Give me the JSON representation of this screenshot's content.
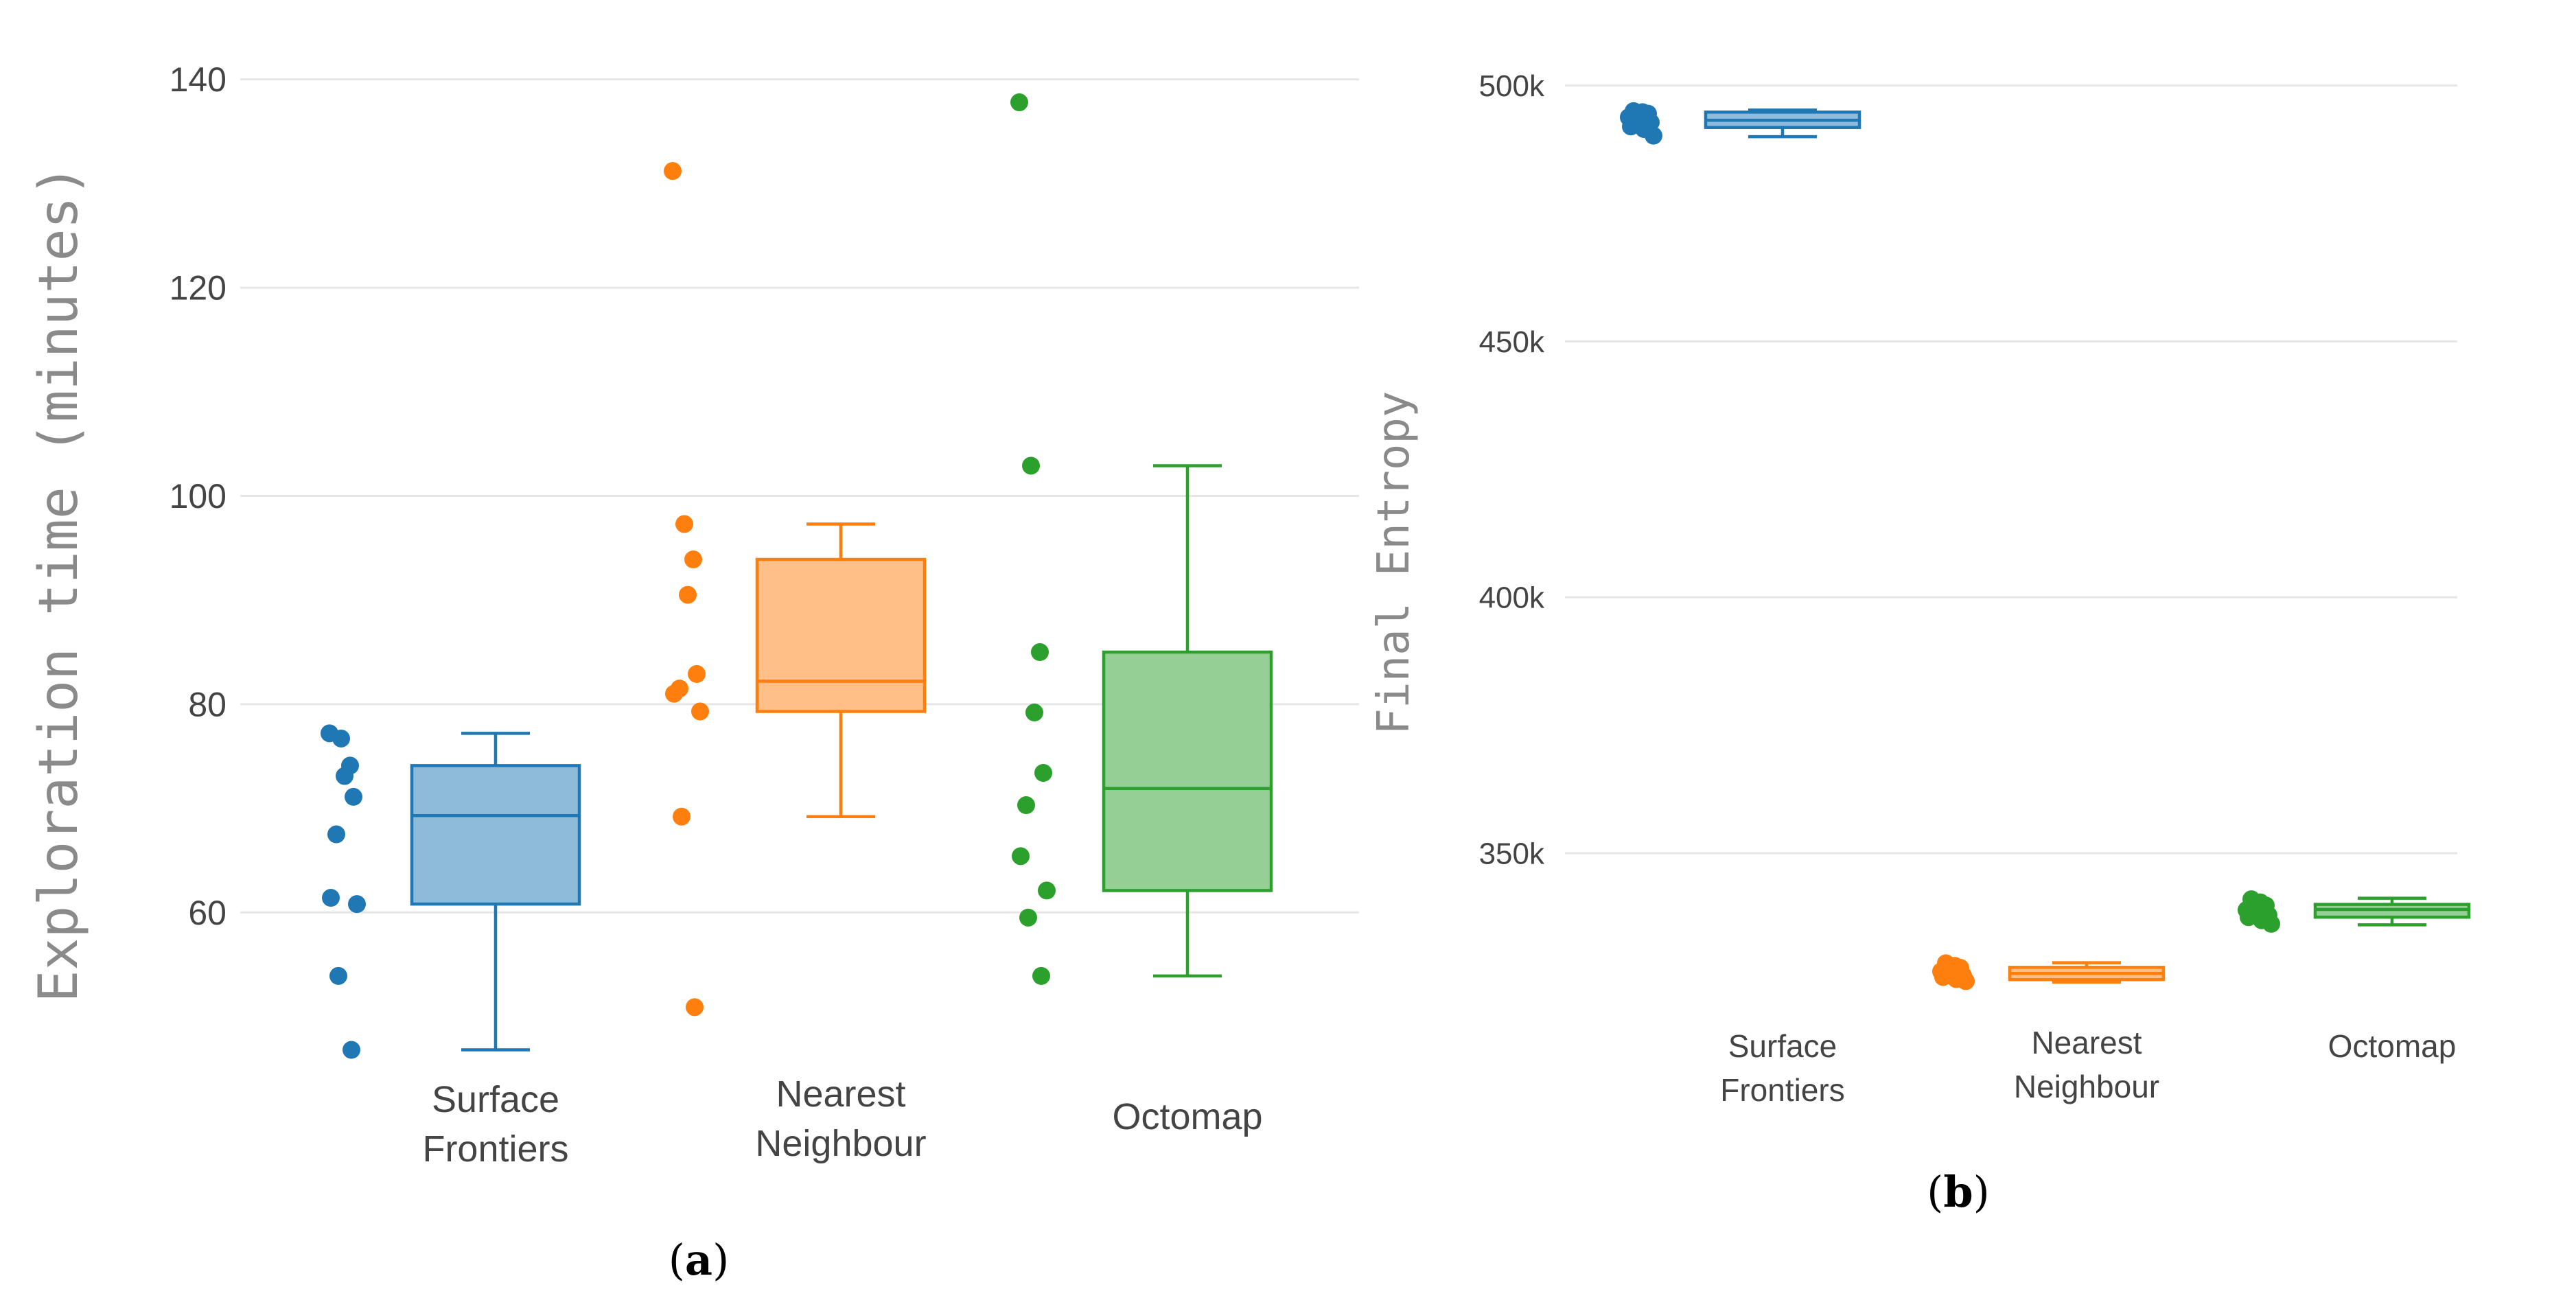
{
  "chart_data": [
    {
      "panel_label": "(a)",
      "type": "box",
      "ylabel": "Exploration time (minutes)",
      "ylim": [
        44,
        144
      ],
      "yticks": [
        60,
        80,
        100,
        120,
        140
      ],
      "ytick_labels": [
        "60",
        "80",
        "100",
        "120",
        "140"
      ],
      "grid": true,
      "series": [
        {
          "name": "Surface Frontiers",
          "label_lines": [
            "Surface",
            "Frontiers"
          ],
          "color": "#1f77b4",
          "fill": "#8fbbdb",
          "points": [
            77.2,
            76.7,
            74.1,
            73.1,
            71.1,
            67.5,
            61.4,
            60.8,
            53.9,
            46.8
          ],
          "q1": 60.8,
          "median": 69.3,
          "q3": 74.1,
          "whisker_low": 46.8,
          "whisker_high": 77.2
        },
        {
          "name": "Nearest Neighbour",
          "label_lines": [
            "Nearest",
            "Neighbour"
          ],
          "color": "#ff7f0e",
          "fill": "#ffbf86",
          "points": [
            131.2,
            97.3,
            93.9,
            90.5,
            82.9,
            81.5,
            81.0,
            79.3,
            69.2,
            50.9
          ],
          "q1": 79.3,
          "median": 82.2,
          "q3": 93.9,
          "whisker_low": 69.2,
          "whisker_high": 97.3
        },
        {
          "name": "Octomap",
          "label_lines": [
            "Octomap"
          ],
          "color": "#2ca02c",
          "fill": "#95cf95",
          "points": [
            137.8,
            102.9,
            85.0,
            79.2,
            73.4,
            70.3,
            65.4,
            62.1,
            59.5,
            53.9
          ],
          "q1": 62.1,
          "median": 71.9,
          "q3": 85.0,
          "whisker_low": 53.9,
          "whisker_high": 102.9
        }
      ]
    },
    {
      "panel_label": "(b)",
      "type": "box",
      "ylabel": "Final Entropy",
      "ylim": [
        315000,
        510000
      ],
      "yticks": [
        350000,
        400000,
        450000,
        500000
      ],
      "ytick_labels": [
        "350k",
        "400k",
        "450k",
        "500k"
      ],
      "grid": true,
      "series": [
        {
          "name": "Surface Frontiers",
          "label_lines": [
            "Surface",
            "Frontiers"
          ],
          "color": "#1f77b4",
          "fill": "#8fbbdb",
          "points": [
            495000,
            494800,
            494500,
            494200,
            493800,
            493200,
            492800,
            492000,
            491500,
            490200
          ],
          "q1": 491800,
          "median": 493200,
          "q3": 494800,
          "whisker_low": 490000,
          "whisker_high": 495200
        },
        {
          "name": "Nearest Neighbour",
          "label_lines": [
            "Nearest",
            "Neighbour"
          ],
          "color": "#ff7f0e",
          "fill": "#ffbf86",
          "points": [
            328500,
            328000,
            327600,
            327300,
            326900,
            326500,
            326100,
            325800,
            325400,
            325000
          ],
          "q1": 325300,
          "median": 326500,
          "q3": 327700,
          "whisker_low": 324800,
          "whisker_high": 328600
        },
        {
          "name": "Octomap",
          "label_lines": [
            "Octomap"
          ],
          "color": "#2ca02c",
          "fill": "#95cf95",
          "points": [
            341000,
            340400,
            339800,
            339300,
            338900,
            338400,
            337900,
            337500,
            336900,
            336200
          ],
          "q1": 337500,
          "median": 339000,
          "q3": 340000,
          "whisker_low": 336000,
          "whisker_high": 341200
        }
      ]
    }
  ]
}
